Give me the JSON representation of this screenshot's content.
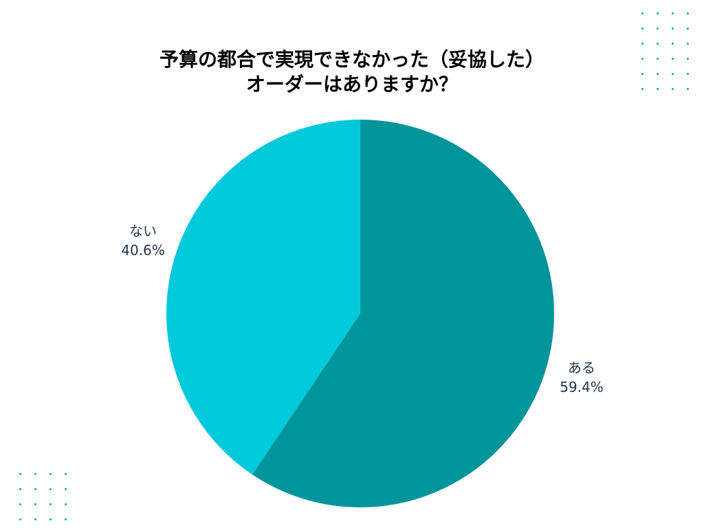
{
  "chart_data": {
    "type": "pie",
    "title": {
      "line1": "予算の都合で実現できなかった（妥協した）",
      "line2": "オーダーはありますか？"
    },
    "slices": [
      {
        "label": "ある",
        "value": 59.4,
        "value_text": "59.4%",
        "color": "#00959b"
      },
      {
        "label": "ない",
        "value": 40.6,
        "value_text": "40.6%",
        "color": "#00c9dc"
      }
    ]
  },
  "decoration": {
    "dot_color": "#11a7a6"
  }
}
